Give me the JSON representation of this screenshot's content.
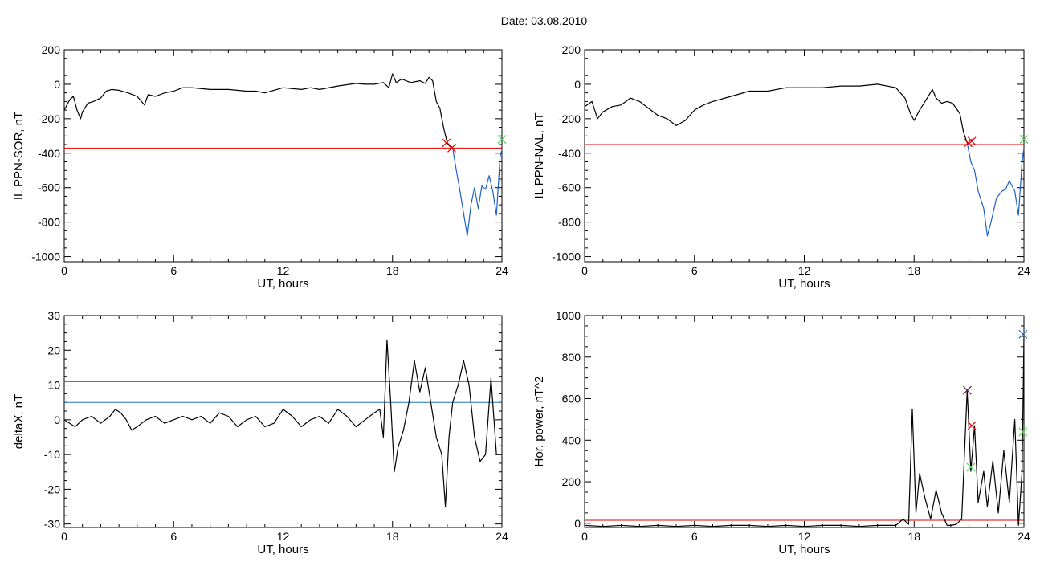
{
  "figure_title": "Date:  03.08.2010",
  "colors": {
    "trace": "#000000",
    "threshold_red": "#e00000",
    "threshold_blue": "#1f77b4",
    "blue_trace": "#1f5fc8",
    "cross_green": "#55cc55",
    "cross_purple": "#552255"
  },
  "chart_data": [
    {
      "type": "line",
      "id": "panel-il-ppn-sor",
      "xlabel": "UT, hours",
      "ylabel": "IL PPN-SOR, nT",
      "xlim": [
        0,
        24
      ],
      "ylim": [
        -1030,
        200
      ],
      "xticks": [
        0,
        6,
        12,
        18,
        24
      ],
      "yticks": [
        200,
        0,
        -200,
        -400,
        -600,
        -800,
        -1000
      ],
      "series": [
        {
          "color": "black",
          "x": [
            0,
            0.3,
            0.5,
            0.7,
            0.9,
            1,
            1.3,
            1.6,
            2,
            2.3,
            2.6,
            3,
            3.5,
            4,
            4.4,
            4.6,
            5,
            5.5,
            6,
            6.5,
            7,
            8,
            9,
            10,
            10.5,
            11,
            12,
            13,
            13.5,
            14,
            15,
            16,
            16.5,
            17,
            17.5,
            17.8,
            18,
            18.2,
            18.5,
            19,
            19.5,
            19.8,
            20,
            20.2,
            20.4,
            20.6,
            20.8,
            21,
            21.3
          ],
          "y": [
            -150,
            -90,
            -70,
            -150,
            -200,
            -160,
            -110,
            -100,
            -80,
            -40,
            -30,
            -35,
            -50,
            -70,
            -120,
            -60,
            -70,
            -50,
            -40,
            -20,
            -20,
            -30,
            -30,
            -40,
            -40,
            -50,
            -20,
            -30,
            -20,
            -30,
            -10,
            5,
            0,
            0,
            10,
            -20,
            60,
            10,
            30,
            10,
            20,
            5,
            40,
            20,
            -100,
            -140,
            -250,
            -340,
            -370
          ]
        },
        {
          "color": "blue",
          "x": [
            21.3,
            21.5,
            21.7,
            21.9,
            22.1,
            22.3,
            22.5,
            22.7,
            22.9,
            23.1,
            23.3,
            23.5,
            23.7,
            23.9,
            24
          ],
          "y": [
            -370,
            -500,
            -620,
            -750,
            -880,
            -700,
            -600,
            -720,
            -590,
            -610,
            -530,
            -620,
            -760,
            -420,
            -380
          ]
        }
      ],
      "thresholds": [
        {
          "color": "red",
          "y": -370
        }
      ],
      "markers": [
        {
          "color": "red",
          "x": 20.95,
          "y": -340
        },
        {
          "color": "red",
          "x": 21.25,
          "y": -370
        },
        {
          "color": "green",
          "x": 24,
          "y": -320
        }
      ]
    },
    {
      "type": "line",
      "id": "panel-il-ppn-nal",
      "xlabel": "UT, hours",
      "ylabel": "IL PPN-NAL, nT",
      "xlim": [
        0,
        24
      ],
      "ylim": [
        -1030,
        200
      ],
      "xticks": [
        0,
        6,
        12,
        18,
        24
      ],
      "yticks": [
        200,
        0,
        -200,
        -400,
        -600,
        -800,
        -1000
      ],
      "series": [
        {
          "color": "black",
          "x": [
            0,
            0.4,
            0.7,
            1,
            1.5,
            2,
            2.5,
            3,
            3.5,
            4,
            4.5,
            5,
            5.5,
            6,
            6.5,
            7,
            8,
            9,
            10,
            11,
            12,
            13,
            14,
            15,
            16,
            17,
            17.5,
            17.8,
            18,
            18.3,
            18.6,
            19,
            19.2,
            19.5,
            19.8,
            20.1,
            20.5,
            20.7,
            20.9
          ],
          "y": [
            -130,
            -100,
            -200,
            -160,
            -130,
            -120,
            -80,
            -100,
            -140,
            -180,
            -200,
            -240,
            -210,
            -150,
            -120,
            -100,
            -70,
            -40,
            -40,
            -20,
            -20,
            -20,
            -10,
            -10,
            0,
            -20,
            -80,
            -170,
            -210,
            -150,
            -100,
            -30,
            -80,
            -110,
            -100,
            -110,
            -170,
            -280,
            -340
          ]
        },
        {
          "color": "blue",
          "x": [
            20.9,
            21.1,
            21.3,
            21.5,
            21.8,
            22,
            22.2,
            22.5,
            22.8,
            23,
            23.2,
            23.5,
            23.7,
            23.9,
            24
          ],
          "y": [
            -340,
            -450,
            -500,
            -620,
            -720,
            -880,
            -800,
            -660,
            -620,
            -610,
            -560,
            -620,
            -760,
            -450,
            -370
          ]
        }
      ],
      "thresholds": [
        {
          "color": "red",
          "y": -350
        }
      ],
      "markers": [
        {
          "color": "red",
          "x": 20.95,
          "y": -340
        },
        {
          "color": "red",
          "x": 21.15,
          "y": -330
        },
        {
          "color": "green",
          "x": 24,
          "y": -320
        }
      ]
    },
    {
      "type": "line",
      "id": "panel-deltax",
      "xlabel": "UT, hours",
      "ylabel": "deltaX, nT",
      "xlim": [
        0,
        24
      ],
      "ylim": [
        -31,
        30
      ],
      "xticks": [
        0,
        6,
        12,
        18,
        24
      ],
      "yticks": [
        30,
        20,
        10,
        0,
        -10,
        -20,
        -30
      ],
      "series": [
        {
          "color": "black",
          "x": [
            0,
            0.3,
            0.6,
            1,
            1.5,
            2,
            2.5,
            2.8,
            3.1,
            3.4,
            3.7,
            4,
            4.5,
            5,
            5.5,
            6,
            6.5,
            7,
            7.5,
            8,
            8.5,
            9,
            9.5,
            10,
            10.5,
            11,
            11.5,
            12,
            12.5,
            13,
            13.5,
            14,
            14.5,
            15,
            15.5,
            16,
            16.5,
            17,
            17.3,
            17.5,
            17.7,
            17.9,
            18.1,
            18.3,
            18.6,
            18.9,
            19.2,
            19.5,
            19.8,
            20.1,
            20.4,
            20.7,
            20.9,
            21.1,
            21.3,
            21.6,
            21.9,
            22.2,
            22.5,
            22.8,
            23.1,
            23.4,
            23.7,
            24
          ],
          "y": [
            0,
            -1,
            -2,
            0,
            1,
            -1,
            1,
            3,
            2,
            0,
            -3,
            -2,
            0,
            1,
            -1,
            0,
            1,
            0,
            1,
            -1,
            2,
            1,
            -2,
            0,
            1,
            -2,
            -1,
            3,
            1,
            -2,
            0,
            1,
            -1,
            3,
            1,
            -2,
            0,
            2,
            3,
            -5,
            23,
            5,
            -15,
            -8,
            -3,
            5,
            17,
            8,
            15,
            5,
            -5,
            -10,
            -25,
            -5,
            5,
            10,
            17,
            10,
            -5,
            -12,
            -10,
            12,
            -10,
            -10
          ]
        }
      ],
      "thresholds": [
        {
          "color": "red",
          "y": 11
        },
        {
          "color": "blue",
          "y": 5
        }
      ],
      "markers": []
    },
    {
      "type": "line",
      "id": "panel-hor-power",
      "xlabel": "UT, hours",
      "ylabel": "Hor. power, nT^2",
      "xlim": [
        0,
        24
      ],
      "ylim": [
        -20,
        1000
      ],
      "xticks": [
        0,
        6,
        12,
        18,
        24
      ],
      "yticks": [
        1000,
        800,
        600,
        400,
        200,
        0
      ],
      "series": [
        {
          "color": "black",
          "x": [
            0,
            1,
            2,
            3,
            4,
            5,
            6,
            7,
            8,
            9,
            10,
            11,
            12,
            13,
            14,
            15,
            16,
            17,
            17.4,
            17.7,
            17.9,
            18.1,
            18.3,
            18.6,
            18.9,
            19.2,
            19.5,
            19.8,
            20,
            20.3,
            20.6,
            20.9,
            21.1,
            21.3,
            21.5,
            21.8,
            22,
            22.3,
            22.6,
            22.9,
            23.2,
            23.5,
            23.7,
            23.9,
            24
          ],
          "y": [
            -10,
            -15,
            -10,
            -15,
            -10,
            -15,
            -10,
            -15,
            -10,
            -10,
            -15,
            -10,
            -15,
            -10,
            -10,
            -15,
            -10,
            -10,
            20,
            -5,
            550,
            50,
            240,
            120,
            20,
            160,
            50,
            -10,
            -10,
            -5,
            20,
            640,
            250,
            470,
            100,
            250,
            80,
            300,
            50,
            350,
            100,
            500,
            -10,
            250,
            900
          ]
        }
      ],
      "thresholds": [
        {
          "color": "red",
          "y": 15
        }
      ],
      "markers": [
        {
          "color": "purple",
          "x": 20.9,
          "y": 640
        },
        {
          "color": "red",
          "x": 21.15,
          "y": 470
        },
        {
          "color": "green",
          "x": 21.1,
          "y": 270
        },
        {
          "color": "blue",
          "x": 23.95,
          "y": 910
        },
        {
          "color": "green",
          "x": 23.95,
          "y": 440
        }
      ]
    }
  ]
}
